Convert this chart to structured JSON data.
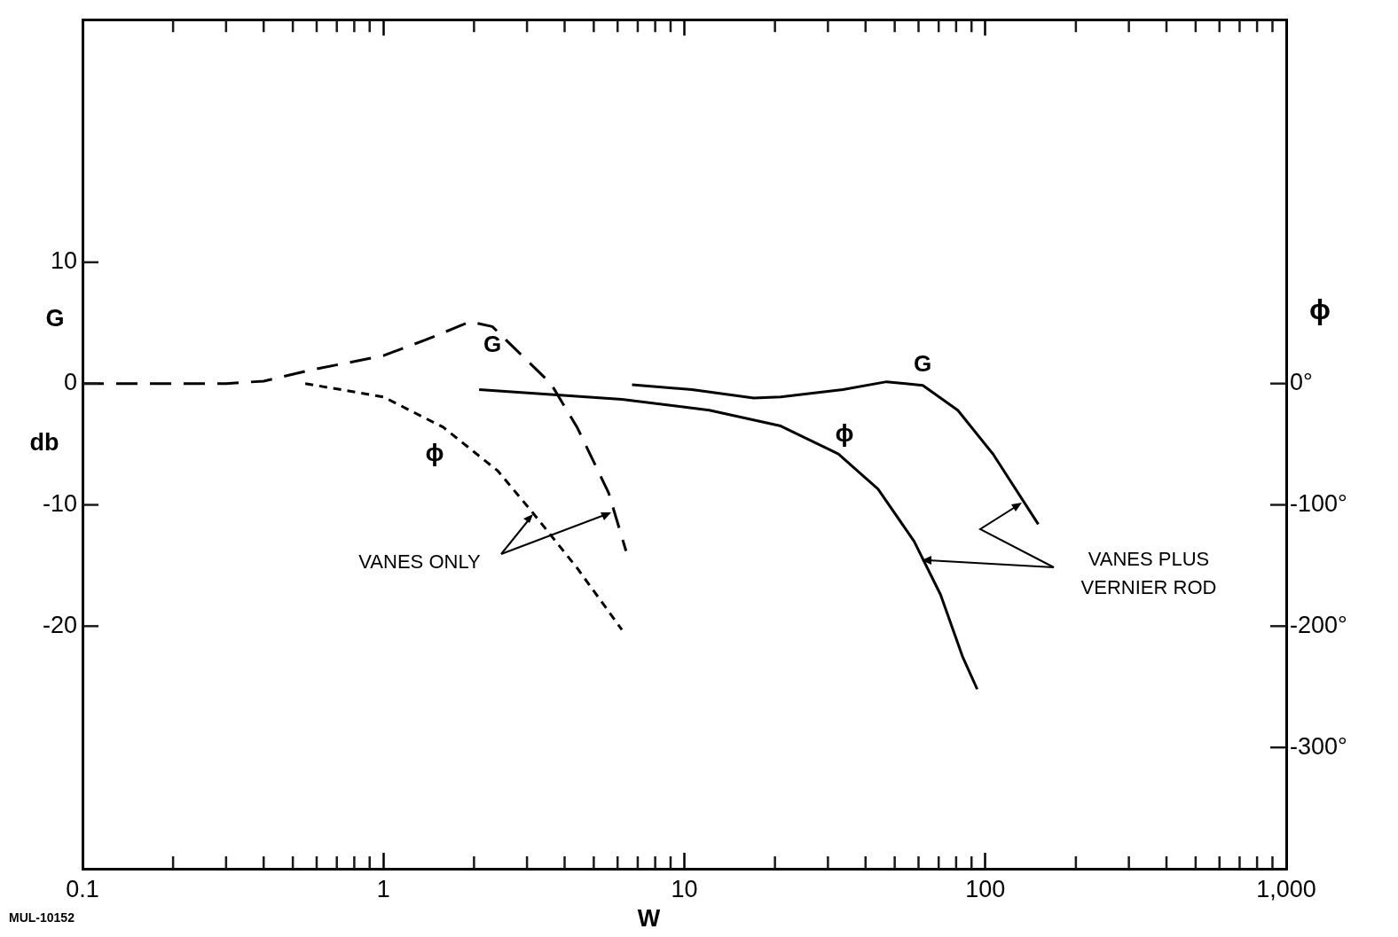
{
  "chart_data": {
    "type": "line",
    "xlabel": "W",
    "ylabel": "G db",
    "y2label": "ϕ",
    "log": "x",
    "xlim": [
      0.1,
      1000
    ],
    "xticks": [
      0.1,
      {
        "value": 0.2,
        "label": null
      },
      {
        "value": 0.3,
        "label": null
      },
      {
        "value": 0.4,
        "label": null
      },
      {
        "value": 0.5,
        "label": null
      },
      {
        "value": 0.6,
        "label": null
      },
      {
        "value": 0.7,
        "label": null
      },
      {
        "value": 0.8,
        "label": null
      },
      {
        "value": 0.9,
        "label": null
      },
      1,
      {
        "value": 2,
        "label": null
      },
      {
        "value": 3,
        "label": null
      },
      {
        "value": 4,
        "label": null
      },
      {
        "value": 5,
        "label": null
      },
      {
        "value": 6,
        "label": null
      },
      {
        "value": 7,
        "label": null
      },
      {
        "value": 8,
        "label": null
      },
      {
        "value": 9,
        "label": null
      },
      10,
      {
        "value": 20,
        "label": null
      },
      {
        "value": 30,
        "label": null
      },
      {
        "value": 40,
        "label": null
      },
      {
        "value": 50,
        "label": null
      },
      {
        "value": 60,
        "label": null
      },
      {
        "value": 70,
        "label": null
      },
      {
        "value": 80,
        "label": null
      },
      {
        "value": 90,
        "label": null
      },
      100,
      {
        "value": 200,
        "label": null
      },
      {
        "value": 300,
        "label": null
      },
      {
        "value": 400,
        "label": null
      },
      {
        "value": 500,
        "label": null
      },
      {
        "value": 600,
        "label": null
      },
      {
        "value": 700,
        "label": null
      },
      {
        "value": 800,
        "label": null
      },
      {
        "value": 900,
        "label": null
      },
      {
        "value": 1000,
        "label": "1,000"
      }
    ],
    "ylim": [
      -40,
      30
    ],
    "yticks": [
      -20,
      -10,
      0,
      10
    ],
    "y2lim": [
      -400,
      300
    ],
    "y2ticks": [
      {
        "value": -300,
        "label": "-300°"
      },
      {
        "value": -200,
        "label": "-200°"
      },
      {
        "value": -100,
        "label": "-100°"
      },
      {
        "value": 0,
        "label": "0°"
      }
    ],
    "grid": false,
    "legend": false,
    "marker": "none",
    "series": [
      {
        "color": "#000000",
        "line_style": "dashed",
        "x": [
          0.1,
          0.3,
          0.4,
          0.57,
          1.0,
          1.38,
          1.94,
          2.3,
          3.6,
          4.4,
          5.6,
          6.4
        ],
        "values": [
          0,
          0,
          0.2,
          1.1,
          2.3,
          3.6,
          5.1,
          4.7,
          0,
          -3.6,
          -9,
          -13.8
        ]
      },
      {
        "color": "#000000",
        "line_style": "dotted",
        "axis": "y2",
        "x": [
          0.55,
          1.0,
          1.58,
          2.4,
          3.1,
          4.4,
          6.2
        ],
        "values": [
          0,
          -11,
          -36,
          -72,
          -105,
          -152,
          -203
        ]
      },
      {
        "color": "#000000",
        "line_style": "solid",
        "x": [
          6.7,
          10.6,
          17,
          20.9,
          33.6,
          47,
          62,
          81,
          106,
          150
        ],
        "values": [
          -0.1,
          -0.5,
          -1.2,
          -1.1,
          -0.5,
          0.15,
          -0.15,
          -2.2,
          -5.8,
          -11.6
        ]
      },
      {
        "color": "#000000",
        "line_style": "solid",
        "axis": "y2",
        "x": [
          2.08,
          6.2,
          12.1,
          20.9,
          32.5,
          44,
          58,
          71,
          84,
          94
        ],
        "values": [
          -5,
          -13,
          -22,
          -35,
          -58,
          -87,
          -130,
          -174,
          -225,
          -252
        ]
      }
    ],
    "annotations": [
      "G",
      "G",
      "ϕ",
      "ϕ",
      "VANES ONLY",
      "VANES PLUS\nVERNIER ROD",
      "MUL-10152"
    ]
  }
}
